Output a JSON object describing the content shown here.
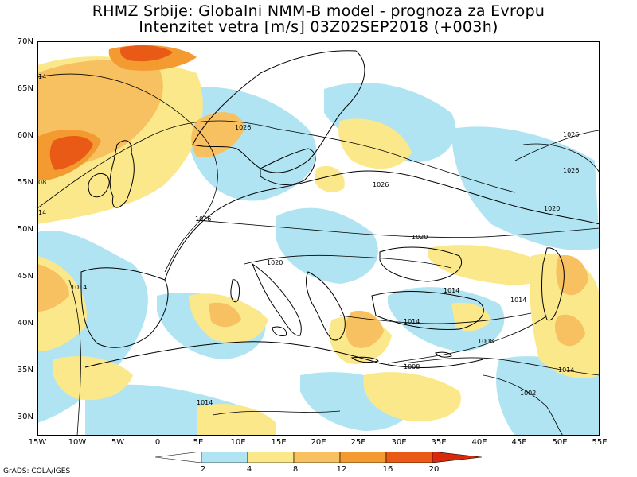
{
  "title": {
    "line1": "RHMZ Srbije: Globalni NMM-B model - prognoza za Evropu",
    "line2": "Intenzitet vetra [m/s] 03Z02SEP2018 (+003h)"
  },
  "axes": {
    "lat_labels": [
      "70N",
      "65N",
      "60N",
      "55N",
      "50N",
      "45N",
      "40N",
      "35N",
      "30N"
    ],
    "lon_labels": [
      "15W",
      "10W",
      "5W",
      "0",
      "5E",
      "10E",
      "15E",
      "20E",
      "25E",
      "30E",
      "35E",
      "40E",
      "45E",
      "50E",
      "55E"
    ]
  },
  "isobar_labels": [
    "1026",
    "1026",
    "1026",
    "1026",
    "1020",
    "1020",
    "1020",
    "1014",
    "1014",
    "1014",
    "1008",
    "1008",
    "1002",
    "1014",
    "1014",
    "1026",
    "1014",
    "14",
    "08",
    "14"
  ],
  "legend": {
    "ticks": [
      "2",
      "4",
      "8",
      "12",
      "16",
      "20"
    ],
    "colors": [
      "#ffffff",
      "#b0e4f2",
      "#fbe88a",
      "#f7c060",
      "#f39a30",
      "#e95a16",
      "#d82a0a",
      "#c01e0e"
    ]
  },
  "credit": "GrADS: COLA/IGES"
}
